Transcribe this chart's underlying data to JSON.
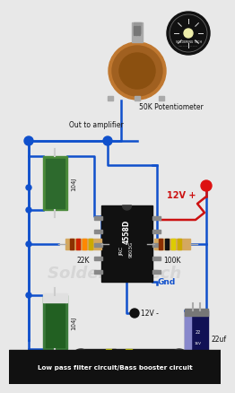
{
  "bg_color": "#e8e8e8",
  "title_bg": "#111111",
  "title_text": "Low pass filter circuit/Bass booster circuit",
  "title_color": "#ffffff",
  "wire_blue": "#1050cc",
  "wire_red": "#cc1111",
  "ic_color": "#111111",
  "ic_label1": "4558D",
  "ic_label2": "JRC",
  "ic_label3": "9803G",
  "watermark": "Soldering Tech",
  "label_out_amp": "Out to amplifier",
  "label_50k": "50K Potentiometer",
  "label_12vp": "12V +",
  "label_gnd": "Gnd",
  "label_12vm": "12V -",
  "label_22k": "22K",
  "label_100k": "100K",
  "label_104j_top": "104J",
  "label_104j_bot": "104J",
  "label_22uf": "22uf",
  "green_cap": "#3a7a3a",
  "dark_cap": "#111133",
  "pot_body": "#8B5010",
  "pot_shaft": "#909090",
  "logo_bg": "#111111",
  "logo_ring": "#666666",
  "jack_body": "#222222",
  "jack_gold": "#cccc00"
}
